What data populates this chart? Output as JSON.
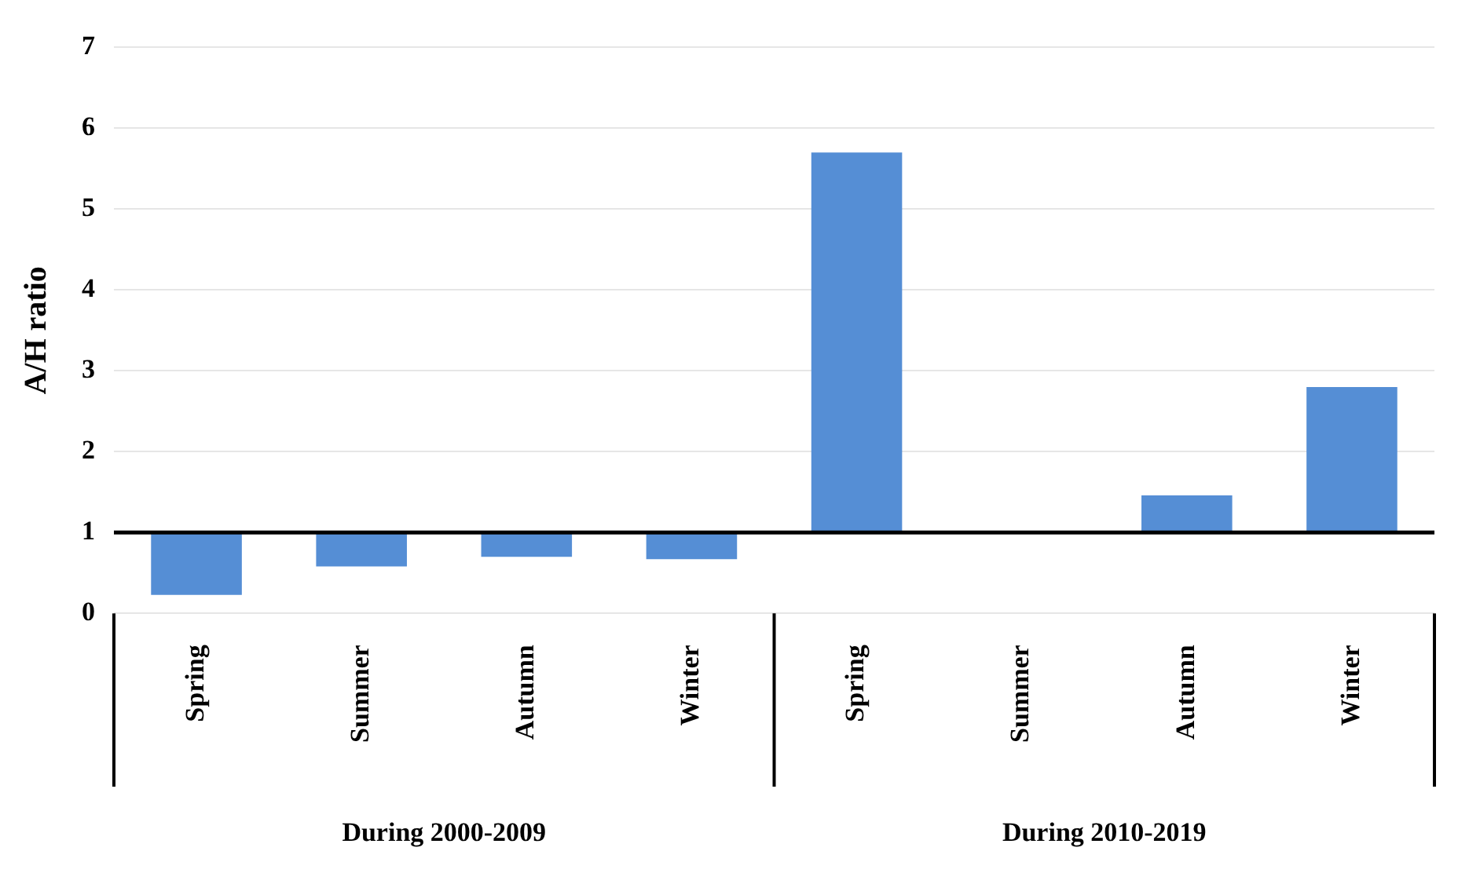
{
  "chart_data": {
    "type": "bar",
    "ylabel": "A/H ratio",
    "categories": [
      "Spring",
      "Summer",
      "Autumn",
      "Winter",
      "Spring",
      "Summer",
      "Autumn",
      "Winter"
    ],
    "base": [
      1,
      1,
      1,
      1,
      1,
      null,
      1,
      1
    ],
    "values": [
      -0.77,
      -0.42,
      -0.3,
      -0.33,
      4.7,
      null,
      0.46,
      1.8
    ],
    "color": "#558ed5",
    "ylim": [
      0,
      7
    ],
    "yticks": [
      0,
      1,
      2,
      3,
      4,
      5,
      6,
      7
    ],
    "grid": "y",
    "ref_lines": [
      {
        "axis": "y",
        "value": 1,
        "color": "#000000"
      }
    ],
    "annotations": [
      "During 2000-2009",
      "During 2010-2019"
    ]
  }
}
